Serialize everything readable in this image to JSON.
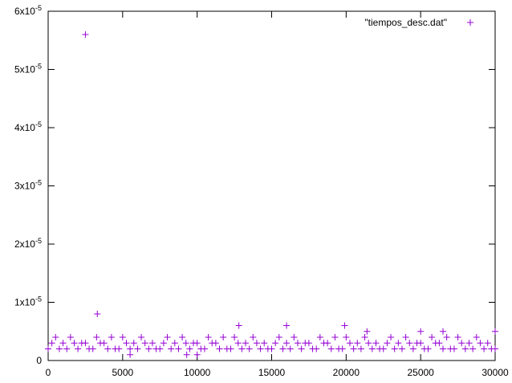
{
  "chart_data": {
    "type": "scatter",
    "series": [
      {
        "name": "\"tiempos_desc.dat\"",
        "color": "#9400d3",
        "x": [
          0,
          250,
          500,
          750,
          1000,
          1250,
          1500,
          1750,
          2000,
          2250,
          2500,
          2750,
          3000,
          3250,
          3500,
          3750,
          4000,
          4250,
          4500,
          4750,
          5000,
          5250,
          5500,
          5750,
          6000,
          6250,
          6500,
          6750,
          7000,
          7250,
          7500,
          7750,
          8000,
          8250,
          8500,
          8750,
          9000,
          9250,
          9500,
          9750,
          10000,
          10250,
          10500,
          10750,
          11000,
          11250,
          11500,
          11750,
          12000,
          12250,
          12500,
          12750,
          13000,
          13250,
          13500,
          13750,
          14000,
          14250,
          14500,
          14750,
          15000,
          15250,
          15500,
          15750,
          16000,
          16250,
          16500,
          16750,
          17000,
          17250,
          17500,
          17750,
          18000,
          18250,
          18500,
          18750,
          19000,
          19250,
          19500,
          19750,
          20000,
          20250,
          20500,
          20750,
          21000,
          21250,
          21500,
          21750,
          22000,
          22250,
          22500,
          22750,
          23000,
          23250,
          23500,
          23750,
          24000,
          24250,
          24500,
          24750,
          25000,
          25250,
          25500,
          25750,
          26000,
          26250,
          26500,
          26750,
          27000,
          27250,
          27500,
          27750,
          28000,
          28250,
          28500,
          28750,
          29000,
          29250,
          29500,
          29750,
          30000,
          2500,
          3300,
          12800,
          16000,
          19900,
          21400,
          25000,
          26500,
          30000,
          5500,
          9300,
          10000
        ],
        "values": [
          2e-06,
          3e-06,
          4e-06,
          2e-06,
          3e-06,
          2e-06,
          4e-06,
          3e-06,
          2e-06,
          3e-06,
          3e-06,
          2e-06,
          2e-06,
          4e-06,
          3e-06,
          3e-06,
          2e-06,
          4e-06,
          2e-06,
          2e-06,
          4e-06,
          3e-06,
          2e-06,
          3e-06,
          2e-06,
          4e-06,
          3e-06,
          2e-06,
          3e-06,
          2e-06,
          2e-06,
          3e-06,
          4e-06,
          2e-06,
          3e-06,
          2e-06,
          4e-06,
          3e-06,
          2e-06,
          3e-06,
          3e-06,
          2e-06,
          2e-06,
          4e-06,
          3e-06,
          3e-06,
          2e-06,
          4e-06,
          2e-06,
          2e-06,
          4e-06,
          3e-06,
          2e-06,
          3e-06,
          2e-06,
          4e-06,
          3e-06,
          2e-06,
          3e-06,
          2e-06,
          2e-06,
          3e-06,
          4e-06,
          2e-06,
          3e-06,
          2e-06,
          4e-06,
          3e-06,
          2e-06,
          3e-06,
          3e-06,
          2e-06,
          2e-06,
          4e-06,
          3e-06,
          3e-06,
          2e-06,
          4e-06,
          2e-06,
          2e-06,
          4e-06,
          3e-06,
          2e-06,
          3e-06,
          2e-06,
          4e-06,
          3e-06,
          2e-06,
          3e-06,
          2e-06,
          2e-06,
          3e-06,
          4e-06,
          2e-06,
          3e-06,
          2e-06,
          4e-06,
          3e-06,
          2e-06,
          3e-06,
          3e-06,
          2e-06,
          2e-06,
          4e-06,
          3e-06,
          3e-06,
          2e-06,
          4e-06,
          2e-06,
          2e-06,
          4e-06,
          3e-06,
          2e-06,
          3e-06,
          2e-06,
          4e-06,
          3e-06,
          2e-06,
          3e-06,
          2e-06,
          2e-06,
          5.6e-05,
          8e-06,
          6e-06,
          6e-06,
          6e-06,
          5e-06,
          5e-06,
          5e-06,
          5e-06,
          1e-06,
          1e-06,
          1e-06
        ]
      }
    ],
    "xlim": [
      0,
      30000
    ],
    "xticks": [
      0,
      5000,
      10000,
      15000,
      20000,
      25000,
      30000
    ],
    "ylim": [
      0,
      6e-05
    ],
    "yticks": [
      0,
      {
        "value": 1e-05,
        "label": "1x10",
        "exponent": "-5"
      },
      {
        "value": 2e-05,
        "label": "2x10",
        "exponent": "-5"
      },
      {
        "value": 3e-05,
        "label": "3x10",
        "exponent": "-5"
      },
      {
        "value": 4e-05,
        "label": "4x10",
        "exponent": "-5"
      },
      {
        "value": 5e-05,
        "label": "5x10",
        "exponent": "-5"
      },
      {
        "value": 6e-05,
        "label": "6x10",
        "exponent": "-5"
      }
    ],
    "grid": false,
    "legend": "top-right"
  }
}
